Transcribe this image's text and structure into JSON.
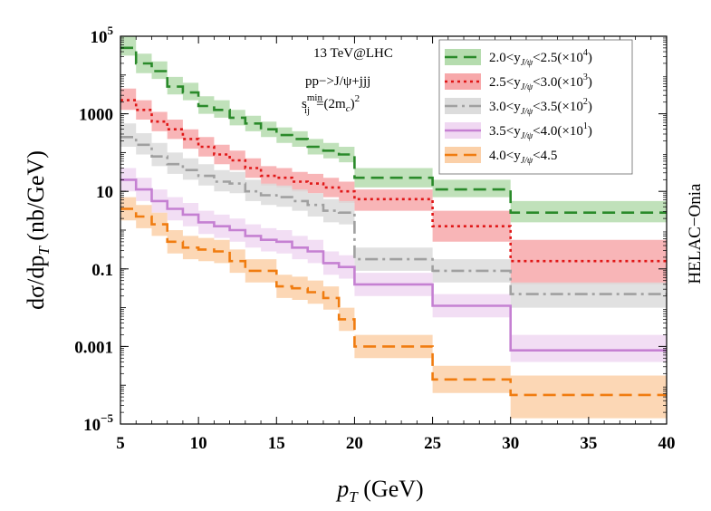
{
  "chart_data": {
    "type": "line",
    "title": "",
    "xlabel": "p_T (GeV)",
    "ylabel": "dσ/dp_T (nb/GeV)",
    "xlim": [
      5,
      40
    ],
    "ylim_log10": [
      -5,
      5
    ],
    "yscale": "log",
    "grid": false,
    "legend_placement": "top-right",
    "side_label": "HELAC−Onia",
    "x_ticks": [
      "5",
      "10",
      "15",
      "20",
      "25",
      "30",
      "35",
      "40"
    ],
    "y_ticks": [
      {
        "exp": 5,
        "label": "10",
        "sup": "5"
      },
      {
        "exp": 3,
        "label": "1000",
        "sup": ""
      },
      {
        "exp": 1,
        "label": "10",
        "sup": ""
      },
      {
        "exp": -1,
        "label": "0.1",
        "sup": ""
      },
      {
        "exp": -3,
        "label": "0.001",
        "sup": ""
      },
      {
        "exp": -5,
        "label": "10",
        "sup": "−5"
      }
    ],
    "annotations": {
      "line1": "13 TeV@LHC",
      "line2": "pp−>J/ψ+jjj",
      "line3_s": "s",
      "line3_sup": "min",
      "line3_sub": "ij",
      "line3_rest": "=(2m",
      "line3_c": "c",
      "line3_end": ")",
      "line3_exp": "2"
    },
    "bin_edges": [
      5,
      6,
      7,
      8,
      9,
      10,
      11,
      12,
      13,
      14,
      15,
      16,
      17,
      18,
      19,
      20,
      25,
      30,
      40
    ],
    "series": [
      {
        "name": "2.0<y_J/ψ<2.5(×10^4)",
        "legend_pre": "2.0<y",
        "legend_sub": "J/ψ",
        "legend_post": "<2.5(×10",
        "legend_exp": "4",
        "legend_end": ")",
        "color": "#2a8a2a",
        "band_color": "#b5dcae",
        "dash": "14,7",
        "log_values": [
          4.7,
          4.3,
          4.1,
          3.7,
          3.55,
          3.2,
          3.1,
          2.9,
          2.75,
          2.6,
          2.45,
          2.35,
          2.15,
          2.05,
          1.95,
          1.35,
          1.05,
          0.45
        ],
        "log_lower": [
          4.5,
          4.05,
          3.9,
          3.5,
          3.35,
          3.0,
          2.9,
          2.7,
          2.55,
          2.4,
          2.25,
          2.15,
          1.95,
          1.85,
          1.75,
          1.1,
          0.85,
          0.2
        ],
        "log_upper": [
          5.0,
          4.55,
          4.35,
          3.95,
          3.8,
          3.45,
          3.35,
          3.1,
          2.95,
          2.8,
          2.65,
          2.55,
          2.35,
          2.25,
          2.15,
          1.6,
          1.3,
          0.75
        ]
      },
      {
        "name": "2.5<y_J/ψ<3.0(×10^3)",
        "legend_pre": "2.5<y",
        "legend_sub": "J/ψ",
        "legend_post": "<3.0(×10",
        "legend_exp": "3",
        "legend_end": ")",
        "color": "#e01818",
        "band_color": "#f7a8aa",
        "dash": "3,4",
        "log_values": [
          3.35,
          3.1,
          2.8,
          2.6,
          2.35,
          2.15,
          1.95,
          1.8,
          1.6,
          1.4,
          1.35,
          1.25,
          1.2,
          1.1,
          1.0,
          0.8,
          0.1,
          -0.8
        ],
        "log_lower": [
          3.1,
          2.85,
          2.55,
          2.35,
          2.1,
          1.9,
          1.7,
          1.55,
          1.35,
          1.15,
          1.1,
          1.0,
          0.95,
          0.85,
          0.7,
          0.5,
          -0.3,
          -1.4
        ],
        "log_upper": [
          3.65,
          3.35,
          3.05,
          2.85,
          2.6,
          2.4,
          2.2,
          2.05,
          1.85,
          1.65,
          1.6,
          1.5,
          1.45,
          1.35,
          1.25,
          1.05,
          0.5,
          -0.25
        ]
      },
      {
        "name": "3.0<y_J/ψ<3.5(×10^2)",
        "legend_pre": "3.0<y",
        "legend_sub": "J/ψ",
        "legend_post": "<3.5(×10",
        "legend_exp": "2",
        "legend_end": ")",
        "color": "#a0a0a0",
        "band_color": "#dcdcdc",
        "dash": "14,5,3,5",
        "log_values": [
          2.4,
          2.2,
          1.9,
          1.7,
          1.55,
          1.4,
          1.25,
          1.2,
          1.0,
          0.9,
          0.85,
          0.75,
          0.65,
          0.5,
          0.45,
          -0.75,
          -1.05,
          -1.65
        ],
        "log_lower": [
          2.15,
          1.95,
          1.65,
          1.45,
          1.3,
          1.15,
          1.0,
          0.95,
          0.75,
          0.65,
          0.6,
          0.5,
          0.35,
          0.2,
          0.15,
          -1.05,
          -1.35,
          -2.0
        ],
        "log_upper": [
          2.75,
          2.5,
          2.25,
          2.0,
          1.85,
          1.7,
          1.55,
          1.5,
          1.3,
          1.2,
          1.15,
          1.05,
          0.95,
          0.8,
          0.75,
          -0.45,
          -0.75,
          -1.35
        ]
      },
      {
        "name": "3.5<y_J/ψ<4.0(×10^1)",
        "legend_pre": "3.5<y",
        "legend_sub": "J/ψ",
        "legend_post": "<4.0(×10",
        "legend_exp": "1",
        "legend_end": ")",
        "color": "#c580d2",
        "band_color": "#f0d8f2",
        "dash": "",
        "log_values": [
          1.3,
          1.05,
          0.75,
          0.55,
          0.4,
          0.2,
          0.1,
          0.0,
          -0.15,
          -0.25,
          -0.3,
          -0.45,
          -0.55,
          -0.85,
          -0.95,
          -1.4,
          -1.95,
          -3.1
        ],
        "log_lower": [
          1.0,
          0.75,
          0.45,
          0.25,
          0.1,
          -0.1,
          -0.2,
          -0.3,
          -0.45,
          -0.55,
          -0.6,
          -0.75,
          -0.85,
          -1.15,
          -1.25,
          -1.7,
          -2.25,
          -3.4
        ],
        "log_upper": [
          1.6,
          1.35,
          1.05,
          0.85,
          0.7,
          0.5,
          0.4,
          0.3,
          0.15,
          0.05,
          0.0,
          -0.15,
          -0.25,
          -0.55,
          -0.65,
          -1.1,
          -1.65,
          -2.7
        ]
      },
      {
        "name": "4.0<y_J/ψ<4.5",
        "legend_pre": "4.0<y",
        "legend_sub": "J/ψ",
        "legend_post": "<4.5",
        "legend_exp": "",
        "legend_end": "",
        "color": "#f07c10",
        "band_color": "#fbd0a8",
        "dash": "14,7",
        "log_values": [
          0.55,
          0.35,
          0.15,
          -0.3,
          -0.45,
          -0.5,
          -0.55,
          -0.8,
          -1.05,
          -1.05,
          -1.45,
          -1.5,
          -1.6,
          -1.75,
          -2.3,
          -3.0,
          -3.85,
          -4.25
        ],
        "log_lower": [
          0.25,
          0.05,
          -0.15,
          -0.6,
          -0.75,
          -0.8,
          -0.85,
          -1.1,
          -1.35,
          -1.35,
          -1.75,
          -1.8,
          -1.9,
          -2.05,
          -2.6,
          -3.3,
          -4.2,
          -4.85
        ],
        "log_upper": [
          0.85,
          0.65,
          0.45,
          0.0,
          -0.15,
          -0.2,
          -0.25,
          -0.5,
          -0.75,
          -0.75,
          -1.15,
          -1.2,
          -1.3,
          -1.45,
          -2.0,
          -2.7,
          -3.5,
          -3.75
        ]
      }
    ]
  }
}
